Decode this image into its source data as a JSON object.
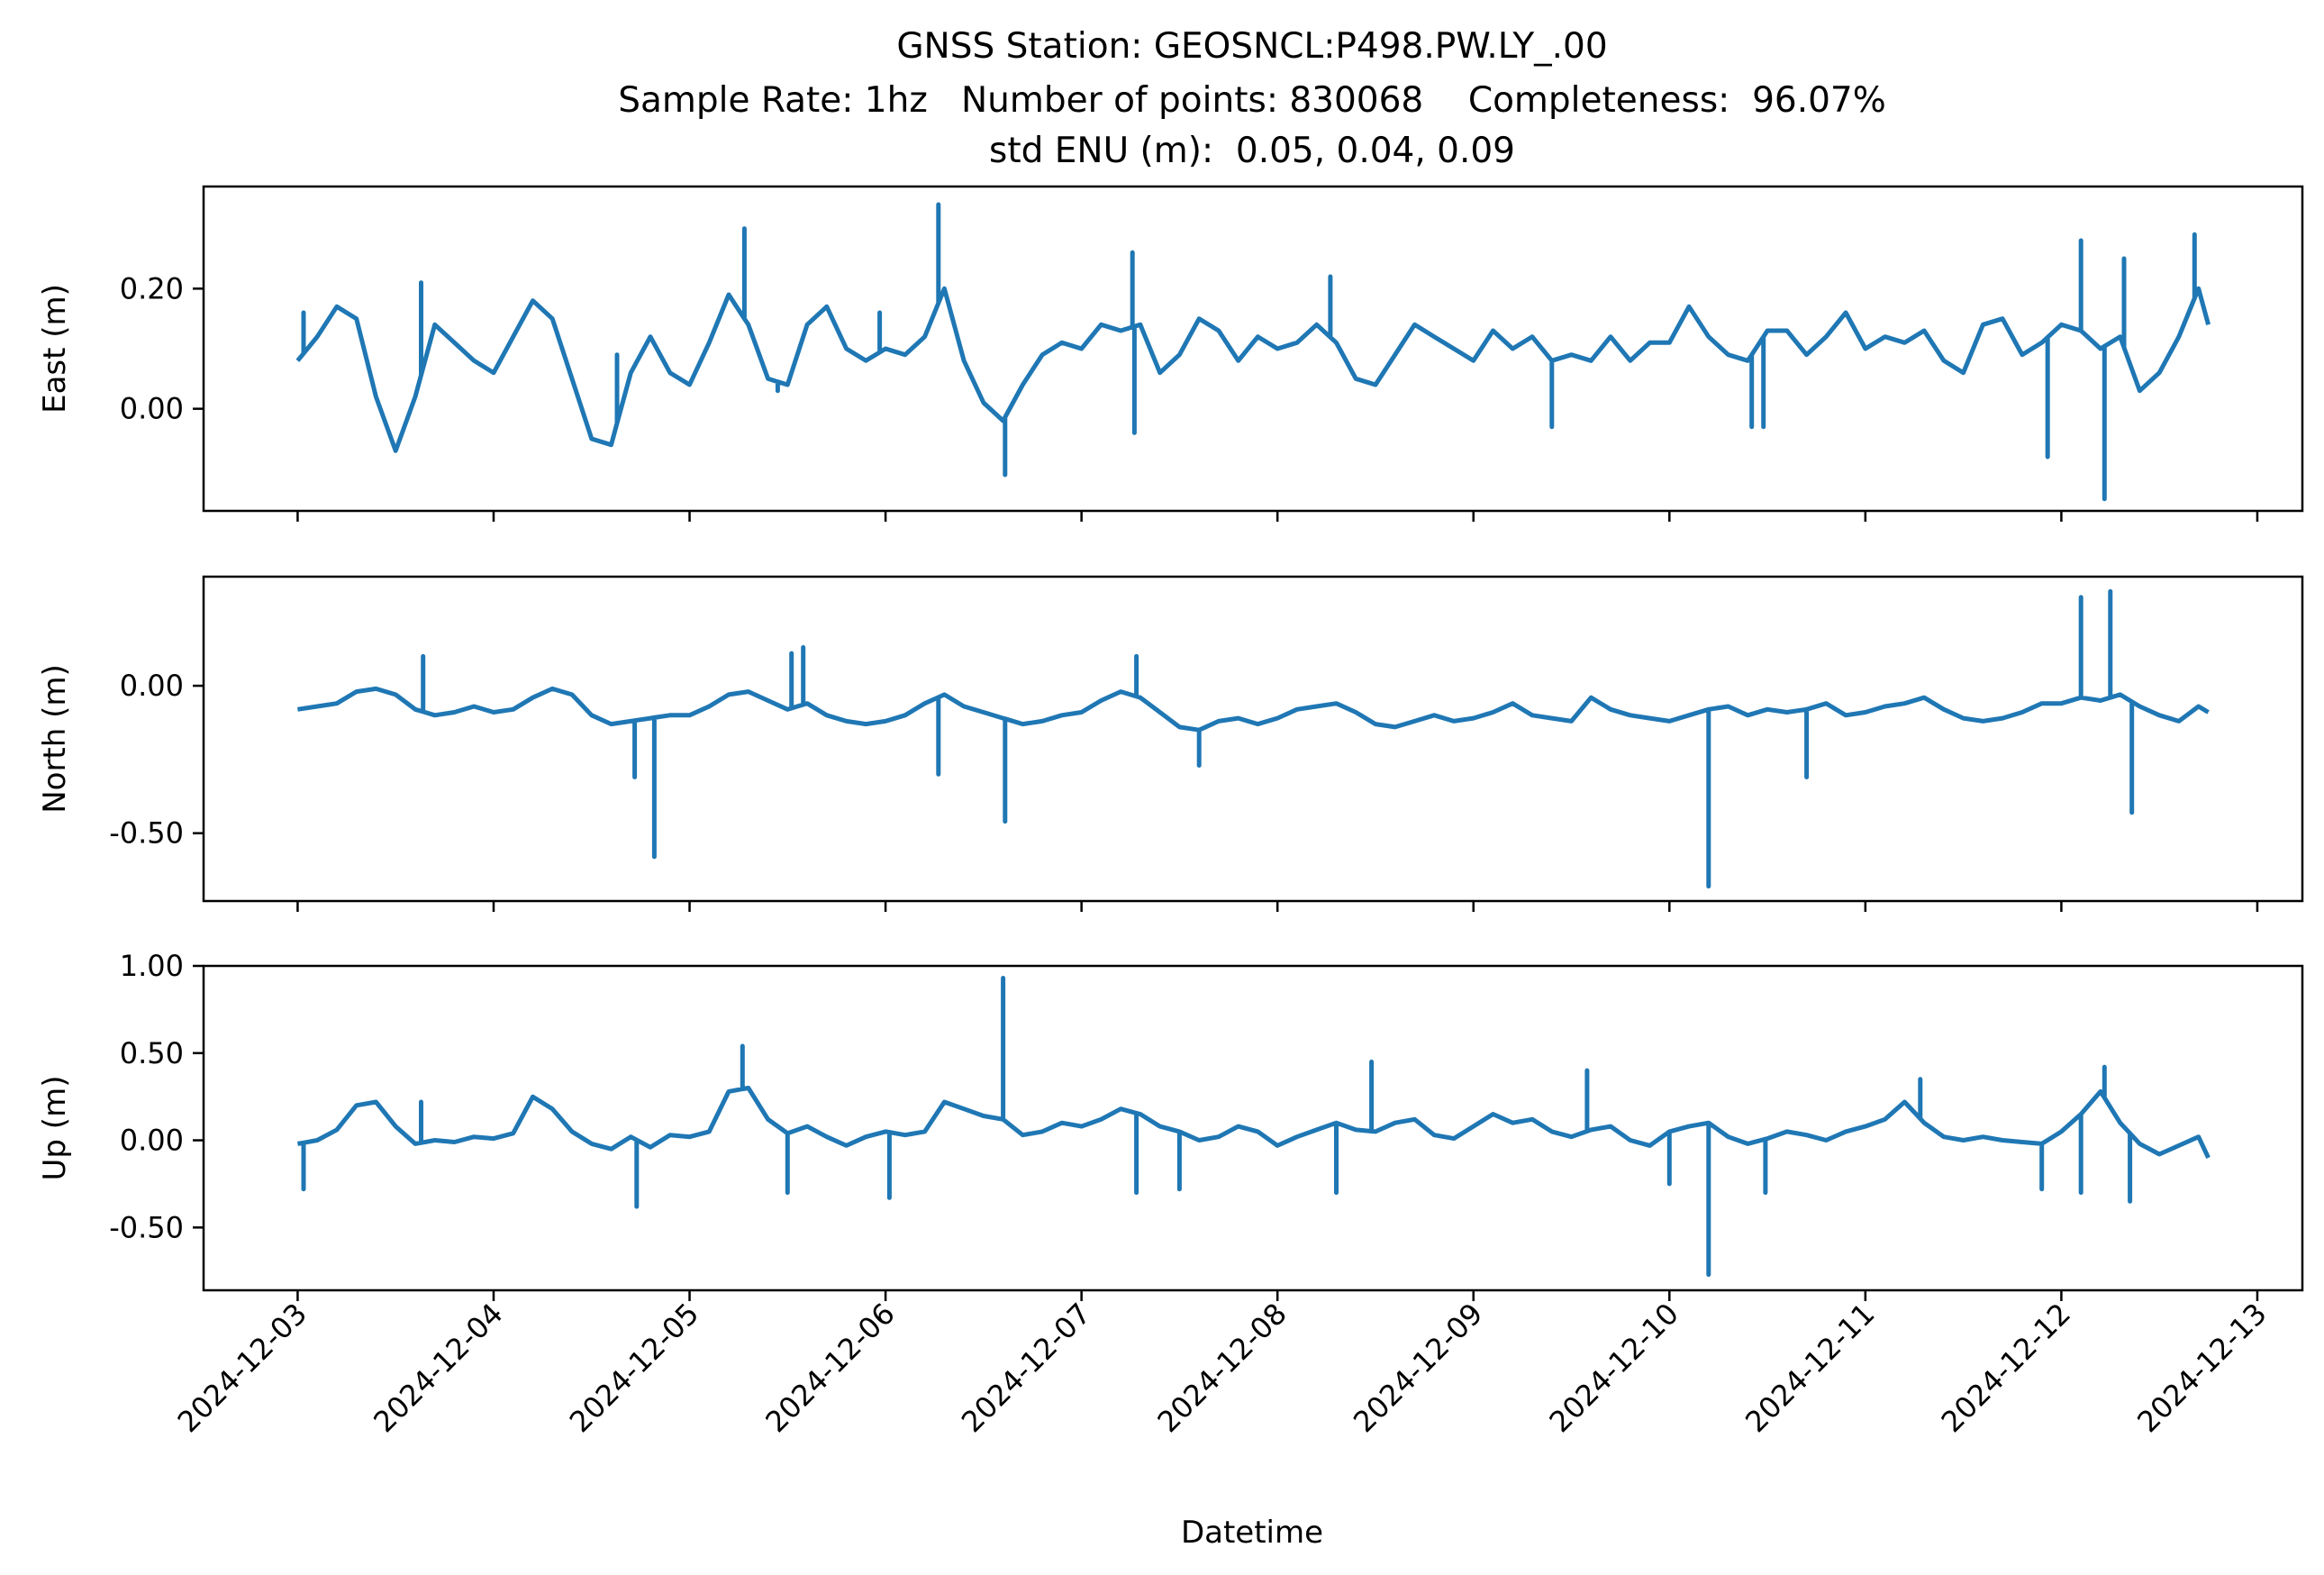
{
  "chart_data": {
    "type": "line",
    "title": "GNSS Station: GEOSNCL:P498.PW.LY_.00",
    "subtitle_line1": "Sample Rate: 1hz   Number of points: 830068    Completeness:  96.07%",
    "subtitle_line2": "std ENU (m):  0.05, 0.04, 0.09",
    "xlabel": "Datetime",
    "x_ticks": [
      "2024-12-03",
      "2024-12-04",
      "2024-12-05",
      "2024-12-06",
      "2024-12-07",
      "2024-12-08",
      "2024-12-09",
      "2024-12-10",
      "2024-12-11",
      "2024-12-12",
      "2024-12-13"
    ],
    "xlim": [
      "2024-12-02 12:00",
      "2024-12-13 00:00"
    ],
    "x_range_days": [
      2.52,
      13.23
    ],
    "color": "#1f77b4",
    "grid": false,
    "legend": "none",
    "panels": [
      {
        "name": "east",
        "ylabel": "East (m)",
        "ylim": [
          -0.17,
          0.37
        ],
        "yticks": [
          0.0,
          0.2
        ],
        "ytick_labels": [
          "0.00",
          "0.20"
        ],
        "x_days": [
          3.0,
          3.1,
          3.2,
          3.3,
          3.4,
          3.5,
          3.6,
          3.7,
          3.8,
          3.9,
          4.0,
          4.1,
          4.2,
          4.3,
          4.4,
          4.5,
          4.6,
          4.7,
          4.8,
          4.9,
          5.0,
          5.1,
          5.2,
          5.3,
          5.4,
          5.5,
          5.6,
          5.7,
          5.8,
          5.9,
          6.0,
          6.1,
          6.2,
          6.3,
          6.4,
          6.5,
          6.6,
          6.7,
          6.8,
          6.9,
          7.0,
          7.1,
          7.2,
          7.3,
          7.4,
          7.5,
          7.6,
          7.7,
          7.8,
          7.9,
          8.0,
          8.1,
          8.2,
          8.3,
          8.4,
          8.5,
          8.6,
          8.7,
          8.8,
          8.9,
          9.0,
          9.1,
          9.2,
          9.3,
          9.4,
          9.5,
          9.6,
          9.7,
          9.8,
          9.9,
          10.0,
          10.1,
          10.2,
          10.3,
          10.4,
          10.5,
          10.6,
          10.7,
          10.8,
          10.9,
          11.0,
          11.1,
          11.2,
          11.3,
          11.4,
          11.5,
          11.6,
          11.7,
          11.8,
          11.9,
          12.0,
          12.1,
          12.2,
          12.3,
          12.4,
          12.5,
          12.6,
          12.7,
          12.75
        ],
        "values": [
          0.08,
          0.12,
          0.17,
          0.15,
          0.02,
          -0.07,
          0.02,
          0.14,
          0.11,
          0.08,
          0.06,
          0.12,
          0.18,
          0.15,
          0.05,
          -0.05,
          -0.06,
          0.06,
          0.12,
          0.06,
          0.04,
          0.11,
          0.19,
          0.14,
          0.05,
          0.04,
          0.14,
          0.17,
          0.1,
          0.08,
          0.1,
          0.09,
          0.12,
          0.2,
          0.08,
          0.01,
          -0.02,
          0.04,
          0.09,
          0.11,
          0.1,
          0.14,
          0.13,
          0.14,
          0.06,
          0.09,
          0.15,
          0.13,
          0.08,
          0.12,
          0.1,
          0.11,
          0.14,
          0.11,
          0.05,
          0.04,
          0.09,
          0.14,
          0.12,
          0.1,
          0.08,
          0.13,
          0.1,
          0.12,
          0.08,
          0.09,
          0.08,
          0.12,
          0.08,
          0.11,
          0.11,
          0.17,
          0.12,
          0.09,
          0.08,
          0.13,
          0.13,
          0.09,
          0.12,
          0.16,
          0.1,
          0.12,
          0.11,
          0.13,
          0.08,
          0.06,
          0.14,
          0.15,
          0.09,
          0.11,
          0.14,
          0.13,
          0.1,
          0.12,
          0.03,
          0.06,
          0.12,
          0.2,
          0.14
        ],
        "spikes": [
          [
            3.03,
            0.16
          ],
          [
            3.63,
            0.21
          ],
          [
            4.63,
            0.09
          ],
          [
            5.28,
            0.3
          ],
          [
            5.45,
            0.03
          ],
          [
            5.97,
            0.16
          ],
          [
            6.27,
            0.34
          ],
          [
            6.27,
            0.26
          ],
          [
            6.61,
            -0.11
          ],
          [
            7.26,
            0.26
          ],
          [
            7.27,
            -0.04
          ],
          [
            8.27,
            0.22
          ],
          [
            9.4,
            -0.03
          ],
          [
            10.42,
            -0.03
          ],
          [
            10.48,
            -0.03
          ],
          [
            11.93,
            -0.08
          ],
          [
            12.1,
            0.28
          ],
          [
            12.22,
            -0.15
          ],
          [
            12.32,
            0.25
          ],
          [
            12.68,
            0.29
          ]
        ]
      },
      {
        "name": "north",
        "ylabel": "North (m)",
        "ylim": [
          -0.73,
          0.37
        ],
        "yticks": [
          0.0,
          -0.5
        ],
        "ytick_labels": [
          "0.00",
          "-0.50"
        ],
        "x_days": [
          3.0,
          3.1,
          3.2,
          3.3,
          3.4,
          3.5,
          3.6,
          3.7,
          3.8,
          3.9,
          4.0,
          4.1,
          4.2,
          4.3,
          4.4,
          4.5,
          4.6,
          4.7,
          4.8,
          4.9,
          5.0,
          5.1,
          5.2,
          5.3,
          5.4,
          5.5,
          5.6,
          5.7,
          5.8,
          5.9,
          6.0,
          6.1,
          6.2,
          6.3,
          6.4,
          6.5,
          6.6,
          6.7,
          6.8,
          6.9,
          7.0,
          7.1,
          7.2,
          7.3,
          7.4,
          7.5,
          7.6,
          7.7,
          7.8,
          7.9,
          8.0,
          8.1,
          8.2,
          8.3,
          8.4,
          8.5,
          8.6,
          8.7,
          8.8,
          8.9,
          9.0,
          9.1,
          9.2,
          9.3,
          9.4,
          9.5,
          9.6,
          9.7,
          9.8,
          9.9,
          10.0,
          10.1,
          10.2,
          10.3,
          10.4,
          10.5,
          10.6,
          10.7,
          10.8,
          10.9,
          11.0,
          11.1,
          11.2,
          11.3,
          11.4,
          11.5,
          11.6,
          11.7,
          11.8,
          11.9,
          12.0,
          12.1,
          12.2,
          12.3,
          12.4,
          12.5,
          12.6,
          12.7,
          12.75
        ],
        "values": [
          -0.08,
          -0.07,
          -0.06,
          -0.02,
          -0.01,
          -0.03,
          -0.08,
          -0.1,
          -0.09,
          -0.07,
          -0.09,
          -0.08,
          -0.04,
          -0.01,
          -0.03,
          -0.1,
          -0.13,
          -0.12,
          -0.11,
          -0.1,
          -0.1,
          -0.07,
          -0.03,
          -0.02,
          -0.05,
          -0.08,
          -0.06,
          -0.1,
          -0.12,
          -0.13,
          -0.12,
          -0.1,
          -0.06,
          -0.03,
          -0.07,
          -0.09,
          -0.11,
          -0.13,
          -0.12,
          -0.1,
          -0.09,
          -0.05,
          -0.02,
          -0.04,
          -0.09,
          -0.14,
          -0.15,
          -0.12,
          -0.11,
          -0.13,
          -0.11,
          -0.08,
          -0.07,
          -0.06,
          -0.09,
          -0.13,
          -0.14,
          -0.12,
          -0.1,
          -0.12,
          -0.11,
          -0.09,
          -0.06,
          -0.1,
          -0.11,
          -0.12,
          -0.04,
          -0.08,
          -0.1,
          -0.11,
          -0.12,
          -0.1,
          -0.08,
          -0.07,
          -0.1,
          -0.08,
          -0.09,
          -0.08,
          -0.06,
          -0.1,
          -0.09,
          -0.07,
          -0.06,
          -0.04,
          -0.08,
          -0.11,
          -0.12,
          -0.11,
          -0.09,
          -0.06,
          -0.06,
          -0.04,
          -0.05,
          -0.03,
          -0.07,
          -0.1,
          -0.12,
          -0.07,
          -0.09
        ],
        "spikes": [
          [
            3.64,
            0.1
          ],
          [
            4.72,
            -0.31
          ],
          [
            4.82,
            -0.58
          ],
          [
            5.52,
            0.11
          ],
          [
            5.58,
            0.13
          ],
          [
            6.27,
            -0.3
          ],
          [
            6.61,
            -0.46
          ],
          [
            7.28,
            0.1
          ],
          [
            7.6,
            -0.27
          ],
          [
            10.2,
            -0.68
          ],
          [
            10.7,
            -0.31
          ],
          [
            12.1,
            0.3
          ],
          [
            12.25,
            0.32
          ],
          [
            12.36,
            -0.43
          ]
        ]
      },
      {
        "name": "up",
        "ylabel": "Up (m)",
        "ylim": [
          -0.86,
          1.0
        ],
        "yticks": [
          1.0,
          0.5,
          0.0,
          -0.5
        ],
        "ytick_labels": [
          "1.00",
          "0.50",
          "0.00",
          "-0.50"
        ],
        "x_days": [
          3.0,
          3.1,
          3.2,
          3.3,
          3.4,
          3.5,
          3.6,
          3.7,
          3.8,
          3.9,
          4.0,
          4.1,
          4.2,
          4.3,
          4.4,
          4.5,
          4.6,
          4.7,
          4.8,
          4.9,
          5.0,
          5.1,
          5.2,
          5.3,
          5.4,
          5.5,
          5.6,
          5.7,
          5.8,
          5.9,
          6.0,
          6.1,
          6.2,
          6.3,
          6.4,
          6.5,
          6.6,
          6.7,
          6.8,
          6.9,
          7.0,
          7.1,
          7.2,
          7.3,
          7.4,
          7.5,
          7.6,
          7.7,
          7.8,
          7.9,
          8.0,
          8.1,
          8.2,
          8.3,
          8.4,
          8.5,
          8.6,
          8.7,
          8.8,
          8.9,
          9.0,
          9.1,
          9.2,
          9.3,
          9.4,
          9.5,
          9.6,
          9.7,
          9.8,
          9.9,
          10.0,
          10.1,
          10.2,
          10.3,
          10.4,
          10.5,
          10.6,
          10.7,
          10.8,
          10.9,
          11.0,
          11.1,
          11.2,
          11.3,
          11.4,
          11.5,
          11.6,
          11.7,
          11.8,
          11.9,
          12.0,
          12.1,
          12.2,
          12.3,
          12.4,
          12.5,
          12.6,
          12.7,
          12.75
        ],
        "values": [
          -0.02,
          0.0,
          0.06,
          0.2,
          0.22,
          0.08,
          -0.02,
          0.0,
          -0.01,
          0.02,
          0.01,
          0.04,
          0.25,
          0.18,
          0.05,
          -0.02,
          -0.05,
          0.02,
          -0.04,
          0.03,
          0.02,
          0.05,
          0.28,
          0.3,
          0.12,
          0.04,
          0.08,
          0.02,
          -0.03,
          0.02,
          0.05,
          0.03,
          0.05,
          0.22,
          0.18,
          0.14,
          0.12,
          0.03,
          0.05,
          0.1,
          0.08,
          0.12,
          0.18,
          0.15,
          0.08,
          0.05,
          0.0,
          0.02,
          0.08,
          0.05,
          -0.03,
          0.02,
          0.06,
          0.1,
          0.06,
          0.05,
          0.1,
          0.12,
          0.03,
          0.01,
          0.08,
          0.15,
          0.1,
          0.12,
          0.05,
          0.02,
          0.06,
          0.08,
          0.0,
          -0.03,
          0.05,
          0.08,
          0.1,
          0.02,
          -0.02,
          0.01,
          0.05,
          0.03,
          0.0,
          0.05,
          0.08,
          0.12,
          0.22,
          0.1,
          0.02,
          0.0,
          0.02,
          0.0,
          -0.01,
          -0.02,
          0.05,
          0.15,
          0.28,
          0.1,
          -0.02,
          -0.08,
          -0.03,
          0.02,
          -0.1
        ],
        "spikes": [
          [
            3.03,
            -0.28
          ],
          [
            3.63,
            0.22
          ],
          [
            4.73,
            -0.38
          ],
          [
            5.27,
            0.54
          ],
          [
            5.5,
            -0.3
          ],
          [
            6.02,
            -0.33
          ],
          [
            6.6,
            0.93
          ],
          [
            7.28,
            -0.3
          ],
          [
            7.5,
            -0.28
          ],
          [
            8.3,
            -0.3
          ],
          [
            8.48,
            0.45
          ],
          [
            9.58,
            0.4
          ],
          [
            10.0,
            -0.25
          ],
          [
            10.2,
            -0.77
          ],
          [
            10.49,
            -0.3
          ],
          [
            11.28,
            0.35
          ],
          [
            11.9,
            -0.28
          ],
          [
            12.1,
            -0.3
          ],
          [
            12.22,
            0.42
          ],
          [
            12.35,
            -0.35
          ]
        ]
      }
    ]
  }
}
